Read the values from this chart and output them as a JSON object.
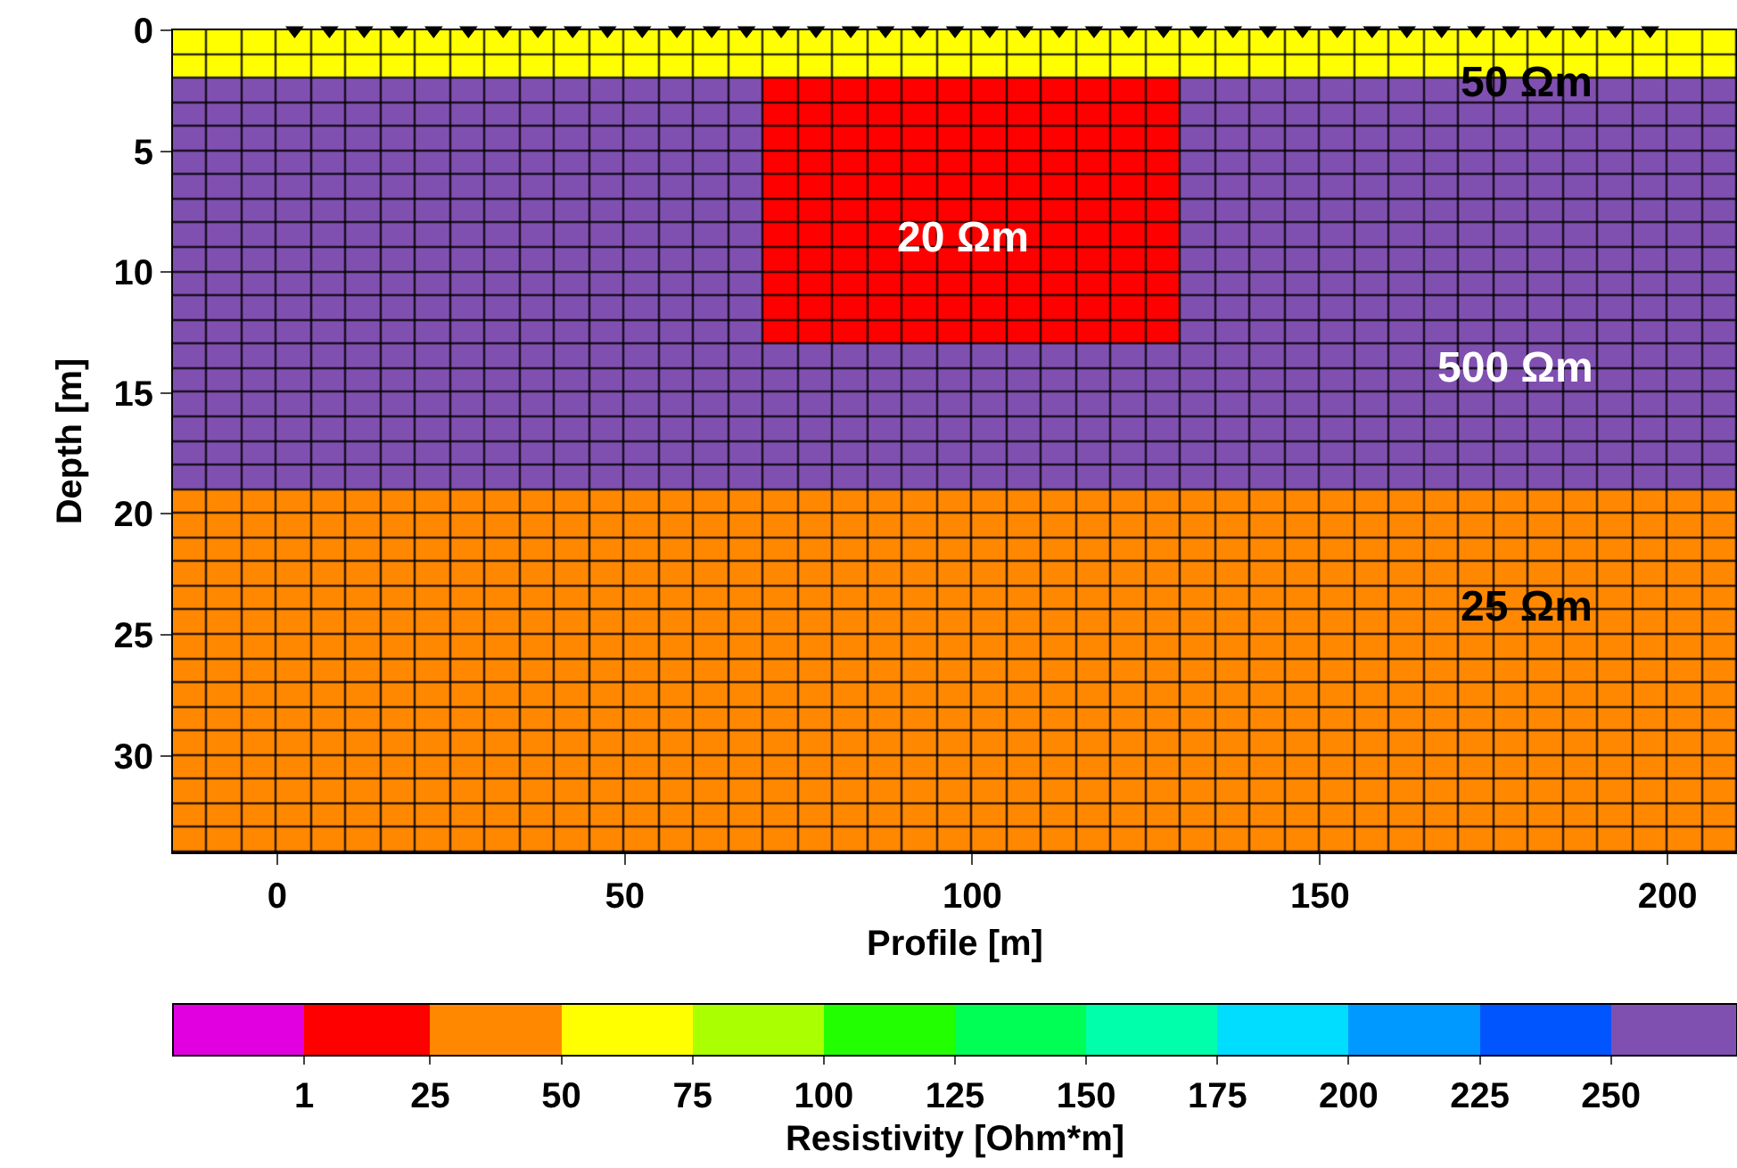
{
  "chart_data": {
    "type": "heatmap",
    "xlabel": "Profile [m]",
    "ylabel": "Depth [m]",
    "clabel": "Resistivity [Ohm*m]",
    "x": [
      -12.5,
      -7.5,
      -2.5,
      2.5,
      7.5,
      12.5,
      17.5,
      22.5,
      27.5,
      32.5,
      37.5,
      42.5,
      47.5,
      52.5,
      57.5,
      62.5,
      67.5,
      72.5,
      77.5,
      82.5,
      87.5,
      92.5,
      97.5,
      102.5,
      107.5,
      112.5,
      117.5,
      122.5,
      127.5,
      132.5,
      137.5,
      142.5,
      147.5,
      152.5,
      157.5,
      162.5,
      167.5,
      172.5,
      177.5,
      182.5,
      187.5,
      192.5,
      197.5,
      202.5,
      207.5
    ],
    "y": [
      0.5,
      1.5,
      2.5,
      3.5,
      4.5,
      5.5,
      6.5,
      7.5,
      8.5,
      9.5,
      10.5,
      11.5,
      12.5,
      13.5,
      14.5,
      15.5,
      16.5,
      17.5,
      18.5,
      19.5,
      20.5,
      21.5,
      22.5,
      23.5,
      24.5,
      25.5,
      26.5,
      27.5,
      28.5,
      29.5,
      30.5,
      31.5,
      32.5,
      33.5
    ],
    "cells": [
      [
        50,
        50,
        50,
        50,
        50,
        50,
        50,
        50,
        50,
        50,
        50,
        50,
        50,
        50,
        50,
        50,
        50,
        50,
        50,
        50,
        50,
        50,
        50,
        50,
        50,
        50,
        50,
        50,
        50,
        50,
        50,
        50,
        50,
        50,
        50,
        50,
        50,
        50,
        50,
        50,
        50,
        50,
        50,
        50,
        50
      ],
      [
        50,
        50,
        50,
        50,
        50,
        50,
        50,
        50,
        50,
        50,
        50,
        50,
        50,
        50,
        50,
        50,
        50,
        50,
        50,
        50,
        50,
        50,
        50,
        50,
        50,
        50,
        50,
        50,
        50,
        50,
        50,
        50,
        50,
        50,
        50,
        50,
        50,
        50,
        50,
        50,
        50,
        50,
        50,
        50,
        50
      ],
      [
        500,
        500,
        500,
        500,
        500,
        500,
        500,
        500,
        500,
        500,
        500,
        500,
        500,
        500,
        500,
        500,
        500,
        20,
        20,
        20,
        20,
        20,
        20,
        20,
        20,
        20,
        20,
        20,
        20,
        500,
        500,
        500,
        500,
        500,
        500,
        500,
        500,
        500,
        500,
        500,
        500,
        500,
        500,
        500,
        500
      ],
      [
        500,
        500,
        500,
        500,
        500,
        500,
        500,
        500,
        500,
        500,
        500,
        500,
        500,
        500,
        500,
        500,
        500,
        20,
        20,
        20,
        20,
        20,
        20,
        20,
        20,
        20,
        20,
        20,
        20,
        500,
        500,
        500,
        500,
        500,
        500,
        500,
        500,
        500,
        500,
        500,
        500,
        500,
        500,
        500,
        500
      ],
      [
        500,
        500,
        500,
        500,
        500,
        500,
        500,
        500,
        500,
        500,
        500,
        500,
        500,
        500,
        500,
        500,
        500,
        20,
        20,
        20,
        20,
        20,
        20,
        20,
        20,
        20,
        20,
        20,
        20,
        500,
        500,
        500,
        500,
        500,
        500,
        500,
        500,
        500,
        500,
        500,
        500,
        500,
        500,
        500,
        500
      ],
      [
        500,
        500,
        500,
        500,
        500,
        500,
        500,
        500,
        500,
        500,
        500,
        500,
        500,
        500,
        500,
        500,
        500,
        20,
        20,
        20,
        20,
        20,
        20,
        20,
        20,
        20,
        20,
        20,
        20,
        500,
        500,
        500,
        500,
        500,
        500,
        500,
        500,
        500,
        500,
        500,
        500,
        500,
        500,
        500,
        500
      ],
      [
        500,
        500,
        500,
        500,
        500,
        500,
        500,
        500,
        500,
        500,
        500,
        500,
        500,
        500,
        500,
        500,
        500,
        20,
        20,
        20,
        20,
        20,
        20,
        20,
        20,
        20,
        20,
        20,
        20,
        500,
        500,
        500,
        500,
        500,
        500,
        500,
        500,
        500,
        500,
        500,
        500,
        500,
        500,
        500,
        500
      ],
      [
        500,
        500,
        500,
        500,
        500,
        500,
        500,
        500,
        500,
        500,
        500,
        500,
        500,
        500,
        500,
        500,
        500,
        20,
        20,
        20,
        20,
        20,
        20,
        20,
        20,
        20,
        20,
        20,
        20,
        500,
        500,
        500,
        500,
        500,
        500,
        500,
        500,
        500,
        500,
        500,
        500,
        500,
        500,
        500,
        500
      ],
      [
        500,
        500,
        500,
        500,
        500,
        500,
        500,
        500,
        500,
        500,
        500,
        500,
        500,
        500,
        500,
        500,
        500,
        20,
        20,
        20,
        20,
        20,
        20,
        20,
        20,
        20,
        20,
        20,
        20,
        500,
        500,
        500,
        500,
        500,
        500,
        500,
        500,
        500,
        500,
        500,
        500,
        500,
        500,
        500,
        500
      ],
      [
        500,
        500,
        500,
        500,
        500,
        500,
        500,
        500,
        500,
        500,
        500,
        500,
        500,
        500,
        500,
        500,
        500,
        20,
        20,
        20,
        20,
        20,
        20,
        20,
        20,
        20,
        20,
        20,
        20,
        500,
        500,
        500,
        500,
        500,
        500,
        500,
        500,
        500,
        500,
        500,
        500,
        500,
        500,
        500,
        500
      ],
      [
        500,
        500,
        500,
        500,
        500,
        500,
        500,
        500,
        500,
        500,
        500,
        500,
        500,
        500,
        500,
        500,
        500,
        20,
        20,
        20,
        20,
        20,
        20,
        20,
        20,
        20,
        20,
        20,
        20,
        500,
        500,
        500,
        500,
        500,
        500,
        500,
        500,
        500,
        500,
        500,
        500,
        500,
        500,
        500,
        500
      ],
      [
        500,
        500,
        500,
        500,
        500,
        500,
        500,
        500,
        500,
        500,
        500,
        500,
        500,
        500,
        500,
        500,
        500,
        20,
        20,
        20,
        20,
        20,
        20,
        20,
        20,
        20,
        20,
        20,
        20,
        500,
        500,
        500,
        500,
        500,
        500,
        500,
        500,
        500,
        500,
        500,
        500,
        500,
        500,
        500,
        500
      ],
      [
        500,
        500,
        500,
        500,
        500,
        500,
        500,
        500,
        500,
        500,
        500,
        500,
        500,
        500,
        500,
        500,
        500,
        20,
        20,
        20,
        20,
        20,
        20,
        20,
        20,
        20,
        20,
        20,
        20,
        500,
        500,
        500,
        500,
        500,
        500,
        500,
        500,
        500,
        500,
        500,
        500,
        500,
        500,
        500,
        500
      ],
      [
        500,
        500,
        500,
        500,
        500,
        500,
        500,
        500,
        500,
        500,
        500,
        500,
        500,
        500,
        500,
        500,
        500,
        500,
        500,
        500,
        500,
        500,
        500,
        500,
        500,
        500,
        500,
        500,
        500,
        500,
        500,
        500,
        500,
        500,
        500,
        500,
        500,
        500,
        500,
        500,
        500,
        500,
        500,
        500,
        500
      ],
      [
        500,
        500,
        500,
        500,
        500,
        500,
        500,
        500,
        500,
        500,
        500,
        500,
        500,
        500,
        500,
        500,
        500,
        500,
        500,
        500,
        500,
        500,
        500,
        500,
        500,
        500,
        500,
        500,
        500,
        500,
        500,
        500,
        500,
        500,
        500,
        500,
        500,
        500,
        500,
        500,
        500,
        500,
        500,
        500,
        500
      ],
      [
        500,
        500,
        500,
        500,
        500,
        500,
        500,
        500,
        500,
        500,
        500,
        500,
        500,
        500,
        500,
        500,
        500,
        500,
        500,
        500,
        500,
        500,
        500,
        500,
        500,
        500,
        500,
        500,
        500,
        500,
        500,
        500,
        500,
        500,
        500,
        500,
        500,
        500,
        500,
        500,
        500,
        500,
        500,
        500,
        500
      ],
      [
        500,
        500,
        500,
        500,
        500,
        500,
        500,
        500,
        500,
        500,
        500,
        500,
        500,
        500,
        500,
        500,
        500,
        500,
        500,
        500,
        500,
        500,
        500,
        500,
        500,
        500,
        500,
        500,
        500,
        500,
        500,
        500,
        500,
        500,
        500,
        500,
        500,
        500,
        500,
        500,
        500,
        500,
        500,
        500,
        500
      ],
      [
        500,
        500,
        500,
        500,
        500,
        500,
        500,
        500,
        500,
        500,
        500,
        500,
        500,
        500,
        500,
        500,
        500,
        500,
        500,
        500,
        500,
        500,
        500,
        500,
        500,
        500,
        500,
        500,
        500,
        500,
        500,
        500,
        500,
        500,
        500,
        500,
        500,
        500,
        500,
        500,
        500,
        500,
        500,
        500,
        500
      ],
      [
        500,
        500,
        500,
        500,
        500,
        500,
        500,
        500,
        500,
        500,
        500,
        500,
        500,
        500,
        500,
        500,
        500,
        500,
        500,
        500,
        500,
        500,
        500,
        500,
        500,
        500,
        500,
        500,
        500,
        500,
        500,
        500,
        500,
        500,
        500,
        500,
        500,
        500,
        500,
        500,
        500,
        500,
        500,
        500,
        500
      ],
      [
        25,
        25,
        25,
        25,
        25,
        25,
        25,
        25,
        25,
        25,
        25,
        25,
        25,
        25,
        25,
        25,
        25,
        25,
        25,
        25,
        25,
        25,
        25,
        25,
        25,
        25,
        25,
        25,
        25,
        25,
        25,
        25,
        25,
        25,
        25,
        25,
        25,
        25,
        25,
        25,
        25,
        25,
        25,
        25,
        25
      ],
      [
        25,
        25,
        25,
        25,
        25,
        25,
        25,
        25,
        25,
        25,
        25,
        25,
        25,
        25,
        25,
        25,
        25,
        25,
        25,
        25,
        25,
        25,
        25,
        25,
        25,
        25,
        25,
        25,
        25,
        25,
        25,
        25,
        25,
        25,
        25,
        25,
        25,
        25,
        25,
        25,
        25,
        25,
        25,
        25,
        25
      ],
      [
        25,
        25,
        25,
        25,
        25,
        25,
        25,
        25,
        25,
        25,
        25,
        25,
        25,
        25,
        25,
        25,
        25,
        25,
        25,
        25,
        25,
        25,
        25,
        25,
        25,
        25,
        25,
        25,
        25,
        25,
        25,
        25,
        25,
        25,
        25,
        25,
        25,
        25,
        25,
        25,
        25,
        25,
        25,
        25,
        25
      ],
      [
        25,
        25,
        25,
        25,
        25,
        25,
        25,
        25,
        25,
        25,
        25,
        25,
        25,
        25,
        25,
        25,
        25,
        25,
        25,
        25,
        25,
        25,
        25,
        25,
        25,
        25,
        25,
        25,
        25,
        25,
        25,
        25,
        25,
        25,
        25,
        25,
        25,
        25,
        25,
        25,
        25,
        25,
        25,
        25,
        25
      ],
      [
        25,
        25,
        25,
        25,
        25,
        25,
        25,
        25,
        25,
        25,
        25,
        25,
        25,
        25,
        25,
        25,
        25,
        25,
        25,
        25,
        25,
        25,
        25,
        25,
        25,
        25,
        25,
        25,
        25,
        25,
        25,
        25,
        25,
        25,
        25,
        25,
        25,
        25,
        25,
        25,
        25,
        25,
        25,
        25,
        25
      ],
      [
        25,
        25,
        25,
        25,
        25,
        25,
        25,
        25,
        25,
        25,
        25,
        25,
        25,
        25,
        25,
        25,
        25,
        25,
        25,
        25,
        25,
        25,
        25,
        25,
        25,
        25,
        25,
        25,
        25,
        25,
        25,
        25,
        25,
        25,
        25,
        25,
        25,
        25,
        25,
        25,
        25,
        25,
        25,
        25,
        25
      ],
      [
        25,
        25,
        25,
        25,
        25,
        25,
        25,
        25,
        25,
        25,
        25,
        25,
        25,
        25,
        25,
        25,
        25,
        25,
        25,
        25,
        25,
        25,
        25,
        25,
        25,
        25,
        25,
        25,
        25,
        25,
        25,
        25,
        25,
        25,
        25,
        25,
        25,
        25,
        25,
        25,
        25,
        25,
        25,
        25,
        25
      ],
      [
        25,
        25,
        25,
        25,
        25,
        25,
        25,
        25,
        25,
        25,
        25,
        25,
        25,
        25,
        25,
        25,
        25,
        25,
        25,
        25,
        25,
        25,
        25,
        25,
        25,
        25,
        25,
        25,
        25,
        25,
        25,
        25,
        25,
        25,
        25,
        25,
        25,
        25,
        25,
        25,
        25,
        25,
        25,
        25,
        25
      ],
      [
        25,
        25,
        25,
        25,
        25,
        25,
        25,
        25,
        25,
        25,
        25,
        25,
        25,
        25,
        25,
        25,
        25,
        25,
        25,
        25,
        25,
        25,
        25,
        25,
        25,
        25,
        25,
        25,
        25,
        25,
        25,
        25,
        25,
        25,
        25,
        25,
        25,
        25,
        25,
        25,
        25,
        25,
        25,
        25,
        25
      ],
      [
        25,
        25,
        25,
        25,
        25,
        25,
        25,
        25,
        25,
        25,
        25,
        25,
        25,
        25,
        25,
        25,
        25,
        25,
        25,
        25,
        25,
        25,
        25,
        25,
        25,
        25,
        25,
        25,
        25,
        25,
        25,
        25,
        25,
        25,
        25,
        25,
        25,
        25,
        25,
        25,
        25,
        25,
        25,
        25,
        25
      ],
      [
        25,
        25,
        25,
        25,
        25,
        25,
        25,
        25,
        25,
        25,
        25,
        25,
        25,
        25,
        25,
        25,
        25,
        25,
        25,
        25,
        25,
        25,
        25,
        25,
        25,
        25,
        25,
        25,
        25,
        25,
        25,
        25,
        25,
        25,
        25,
        25,
        25,
        25,
        25,
        25,
        25,
        25,
        25,
        25,
        25
      ],
      [
        25,
        25,
        25,
        25,
        25,
        25,
        25,
        25,
        25,
        25,
        25,
        25,
        25,
        25,
        25,
        25,
        25,
        25,
        25,
        25,
        25,
        25,
        25,
        25,
        25,
        25,
        25,
        25,
        25,
        25,
        25,
        25,
        25,
        25,
        25,
        25,
        25,
        25,
        25,
        25,
        25,
        25,
        25,
        25,
        25
      ],
      [
        25,
        25,
        25,
        25,
        25,
        25,
        25,
        25,
        25,
        25,
        25,
        25,
        25,
        25,
        25,
        25,
        25,
        25,
        25,
        25,
        25,
        25,
        25,
        25,
        25,
        25,
        25,
        25,
        25,
        25,
        25,
        25,
        25,
        25,
        25,
        25,
        25,
        25,
        25,
        25,
        25,
        25,
        25,
        25,
        25
      ],
      [
        25,
        25,
        25,
        25,
        25,
        25,
        25,
        25,
        25,
        25,
        25,
        25,
        25,
        25,
        25,
        25,
        25,
        25,
        25,
        25,
        25,
        25,
        25,
        25,
        25,
        25,
        25,
        25,
        25,
        25,
        25,
        25,
        25,
        25,
        25,
        25,
        25,
        25,
        25,
        25,
        25,
        25,
        25,
        25,
        25
      ],
      [
        25,
        25,
        25,
        25,
        25,
        25,
        25,
        25,
        25,
        25,
        25,
        25,
        25,
        25,
        25,
        25,
        25,
        25,
        25,
        25,
        25,
        25,
        25,
        25,
        25,
        25,
        25,
        25,
        25,
        25,
        25,
        25,
        25,
        25,
        25,
        25,
        25,
        25,
        25,
        25,
        25,
        25,
        25,
        25,
        25
      ]
    ],
    "xlim": [
      -15,
      210
    ],
    "xticks": [
      0,
      50,
      100,
      150,
      200
    ],
    "ylim": [
      34,
      0
    ],
    "yticks": [
      0,
      5,
      10,
      15,
      20,
      25,
      30
    ],
    "clim": [
      -24,
      274
    ],
    "cticks": [
      1,
      25,
      50,
      75,
      100,
      125,
      150,
      175,
      200,
      225,
      250
    ],
    "colors": [
      "#e000e0",
      "#ff0000",
      "#ff8800",
      "#ffff00",
      "#aaff00",
      "#22ff00",
      "#00ff55",
      "#00ffaa",
      "#00ddff",
      "#0099ff",
      "#0055ff",
      "#8050b0"
    ],
    "series": [
      {
        "type": "scatter",
        "marker": "triangle",
        "color": "#000000",
        "x": [
          2.5,
          7.5,
          12.5,
          17.5,
          22.5,
          27.5,
          32.5,
          37.5,
          42.5,
          47.5,
          52.5,
          57.5,
          62.5,
          67.5,
          72.5,
          77.5,
          82.5,
          87.5,
          92.5,
          97.5,
          102.5,
          107.5,
          112.5,
          117.5,
          122.5,
          127.5,
          132.5,
          137.5,
          142.5,
          147.5,
          152.5,
          157.5,
          162.5,
          167.5,
          172.5,
          177.5,
          182.5,
          187.5,
          192.5,
          197.5
        ],
        "values": [
          0,
          0,
          0,
          0,
          0,
          0,
          0,
          0,
          0,
          0,
          0,
          0,
          0,
          0,
          0,
          0,
          0,
          0,
          0,
          0,
          0,
          0,
          0,
          0,
          0,
          0,
          0,
          0,
          0,
          0,
          0,
          0,
          0,
          0,
          0,
          0,
          0,
          0,
          0,
          0
        ]
      }
    ],
    "annotations": [
      "50 Ωm",
      "20 Ωm",
      "500 Ωm",
      "25 Ωm"
    ]
  }
}
